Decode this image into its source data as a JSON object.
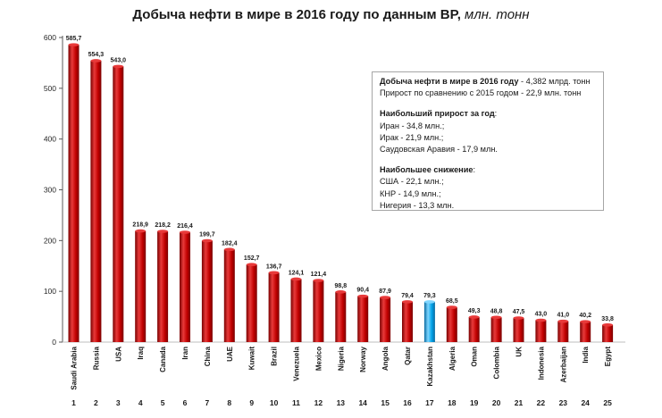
{
  "title": {
    "main": "Добыча нефти в мире в 2016 году по данным BP,",
    "unit": "млн. тонн"
  },
  "info_box": {
    "total_label": "Добыча нефти в мире в 2016 году",
    "total_value": " - 4,382 млрд. тонн",
    "growth_line": "Прирост по сравнению с 2015 годом - 22,9 млн. тонн",
    "max_growth_heading": "Наибольший прирост за год",
    "max_growth_colon": ":",
    "max_growth_items": [
      "Иран - 34,8 млн.;",
      "Ирак - 21,9 млн.;",
      "Саудовская Аравия - 17,9 млн."
    ],
    "max_decline_heading": "Наибольшее снижение",
    "max_decline_colon": ":",
    "max_decline_items": [
      "США - 22,1 млн.;",
      "КНР - 14,9 млн.;",
      "Нигерия - 13,3 млн."
    ]
  },
  "colors": {
    "bar": "#c00000",
    "bar_dark": "#7a0000",
    "bar_light": "#e83a3a",
    "highlight": "#00a2e8",
    "highlight_dark": "#0a6aa0",
    "highlight_light": "#7fd6ff"
  },
  "chart_data": {
    "type": "bar",
    "title": "Добыча нефти в мире в 2016 году по данным BP, млн. тонн",
    "xlabel": "",
    "ylabel": "",
    "ylim": [
      0,
      600
    ],
    "yticks": [
      0,
      100,
      200,
      300,
      400,
      500,
      600
    ],
    "grid": false,
    "categories": [
      "Saudi Arabia",
      "Russia",
      "USA",
      "Iraq",
      "Canada",
      "Iran",
      "China",
      "UAE",
      "Kuwait",
      "Brazil",
      "Venezuela",
      "Mexico",
      "Nigeria",
      "Norway",
      "Angola",
      "Qatar",
      "Kazakhstan",
      "Algeria",
      "Oman",
      "Colombia",
      "UK",
      "Indonesia",
      "Azerbaijan",
      "India",
      "Egypt"
    ],
    "ranks": [
      "1",
      "2",
      "3",
      "4",
      "5",
      "6",
      "7",
      "8",
      "9",
      "10",
      "11",
      "12",
      "13",
      "14",
      "15",
      "16",
      "17",
      "18",
      "19",
      "20",
      "21",
      "22",
      "23",
      "24",
      "25"
    ],
    "values": [
      585.7,
      554.3,
      543.0,
      218.9,
      218.2,
      216.4,
      199.7,
      182.4,
      152.7,
      136.7,
      124.1,
      121.4,
      98.8,
      90.4,
      87.9,
      79.4,
      79.3,
      68.5,
      49.3,
      48.8,
      47.5,
      43.0,
      41.0,
      40.2,
      33.8
    ],
    "value_labels": [
      "585,7",
      "554,3",
      "543,0",
      "218,9",
      "218,2",
      "216,4",
      "199,7",
      "182,4",
      "152,7",
      "136,7",
      "124,1",
      "121,4",
      "98,8",
      "90,4",
      "87,9",
      "79,4",
      "79,3",
      "68,5",
      "49,3",
      "48,8",
      "47,5",
      "43,0",
      "41,0",
      "40,2",
      "33,8"
    ],
    "highlight": "Kazakhstan"
  }
}
